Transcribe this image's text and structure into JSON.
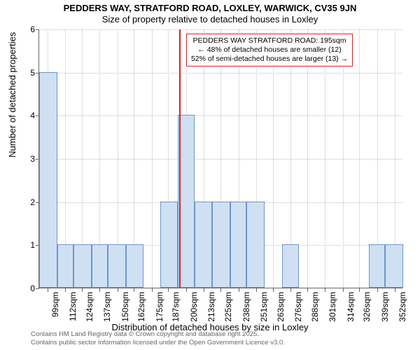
{
  "titles": {
    "main": "PEDDERS WAY, STRATFORD ROAD, LOXLEY, WARWICK, CV35 9JN",
    "sub": "Size of property relative to detached houses in Loxley"
  },
  "chart": {
    "type": "histogram",
    "bar_fill": "#cfe0f3",
    "bar_stroke": "#6d96c9",
    "background": "#ffffff",
    "grid_color": "#bfbfbf",
    "axis_color": "#666666",
    "marker_color": "#e12020",
    "ylabel": "Number of detached properties",
    "xlabel": "Distribution of detached houses by size in Loxley",
    "label_fontsize": 13,
    "tick_fontsize": 12,
    "ylim": [
      0,
      6
    ],
    "ytick_step": 1,
    "xlim": [
      93,
      358
    ],
    "x_ticks": [
      99,
      112,
      124,
      137,
      150,
      162,
      175,
      187,
      200,
      213,
      225,
      238,
      251,
      263,
      276,
      288,
      301,
      314,
      326,
      339,
      352
    ],
    "x_tick_labels": [
      "99sqm",
      "112sqm",
      "124sqm",
      "137sqm",
      "150sqm",
      "162sqm",
      "175sqm",
      "187sqm",
      "200sqm",
      "213sqm",
      "225sqm",
      "238sqm",
      "251sqm",
      "263sqm",
      "276sqm",
      "288sqm",
      "301sqm",
      "314sqm",
      "326sqm",
      "339sqm",
      "352sqm"
    ],
    "bars": [
      {
        "x_start": 93,
        "x_end": 106,
        "y": 5
      },
      {
        "x_start": 106,
        "x_end": 118,
        "y": 1
      },
      {
        "x_start": 118,
        "x_end": 131,
        "y": 1
      },
      {
        "x_start": 131,
        "x_end": 143,
        "y": 1
      },
      {
        "x_start": 143,
        "x_end": 156,
        "y": 1
      },
      {
        "x_start": 156,
        "x_end": 169,
        "y": 1
      },
      {
        "x_start": 169,
        "x_end": 181,
        "y": 0
      },
      {
        "x_start": 181,
        "x_end": 194,
        "y": 2
      },
      {
        "x_start": 194,
        "x_end": 206,
        "y": 4
      },
      {
        "x_start": 206,
        "x_end": 219,
        "y": 2
      },
      {
        "x_start": 219,
        "x_end": 232,
        "y": 2
      },
      {
        "x_start": 232,
        "x_end": 244,
        "y": 2
      },
      {
        "x_start": 244,
        "x_end": 257,
        "y": 2
      },
      {
        "x_start": 257,
        "x_end": 270,
        "y": 0
      },
      {
        "x_start": 270,
        "x_end": 282,
        "y": 1
      },
      {
        "x_start": 282,
        "x_end": 295,
        "y": 0
      },
      {
        "x_start": 295,
        "x_end": 307,
        "y": 0
      },
      {
        "x_start": 307,
        "x_end": 320,
        "y": 0
      },
      {
        "x_start": 320,
        "x_end": 333,
        "y": 0
      },
      {
        "x_start": 333,
        "x_end": 345,
        "y": 1
      },
      {
        "x_start": 345,
        "x_end": 358,
        "y": 1
      }
    ],
    "marker_x": 195,
    "info_box": {
      "line1": "PEDDERS WAY STRATFORD ROAD: 195sqm",
      "line2": "← 48% of detached houses are smaller (12)",
      "line3": "52% of semi-detached houses are larger (13) →",
      "x": 200,
      "fontsize": 10.5
    }
  },
  "attribution": {
    "line1": "Contains HM Land Registry data © Crown copyright and database right 2025.",
    "line2": "Contains public sector information licensed under the Open Government Licence v3.0."
  }
}
